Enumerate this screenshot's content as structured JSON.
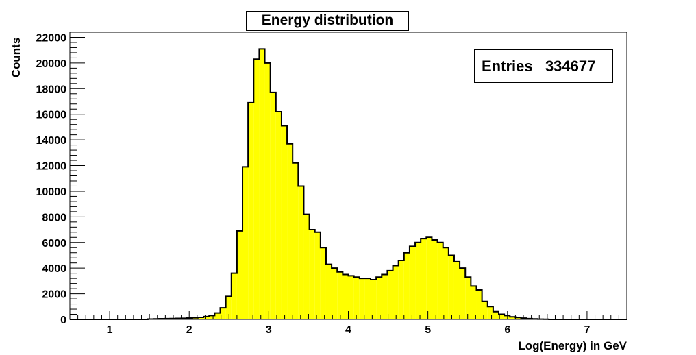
{
  "chart_data": {
    "type": "bar",
    "title": "Energy distribution",
    "xlabel": "Log(Energy) in GeV",
    "ylabel": "Counts",
    "stats": {
      "label": "Entries",
      "value": "334677"
    },
    "xlim": [
      0.5,
      7.5
    ],
    "ylim": [
      0,
      22400
    ],
    "x_ticks": [
      1,
      2,
      3,
      4,
      5,
      6,
      7
    ],
    "y_ticks": [
      0,
      2000,
      4000,
      6000,
      8000,
      10000,
      12000,
      14000,
      16000,
      18000,
      20000,
      22000
    ],
    "bin_width": 0.07,
    "bin_start": 0.5,
    "values": [
      0,
      0,
      0,
      0,
      0,
      0,
      0,
      0,
      0,
      0,
      0,
      0,
      0,
      0,
      30,
      40,
      50,
      60,
      70,
      80,
      90,
      110,
      130,
      160,
      220,
      300,
      500,
      900,
      1800,
      3600,
      6900,
      11900,
      16900,
      20300,
      21100,
      20000,
      17700,
      16200,
      15100,
      13700,
      12200,
      10400,
      8200,
      7000,
      6800,
      5600,
      4300,
      4000,
      3700,
      3500,
      3400,
      3300,
      3200,
      3200,
      3100,
      3300,
      3500,
      3800,
      4200,
      4600,
      5200,
      5700,
      6000,
      6300,
      6400,
      6200,
      6000,
      5600,
      5000,
      4500,
      4000,
      3300,
      2600,
      2300,
      1400,
      1000,
      600,
      400,
      300,
      200,
      150,
      100,
      60,
      40,
      20,
      10,
      0,
      0,
      0,
      0,
      0,
      0,
      0,
      0,
      0,
      0,
      0,
      0,
      0,
      0
    ],
    "fill_color": "#ffff00",
    "line_color": "#000000",
    "grid": false,
    "legend_position": "top-right"
  }
}
